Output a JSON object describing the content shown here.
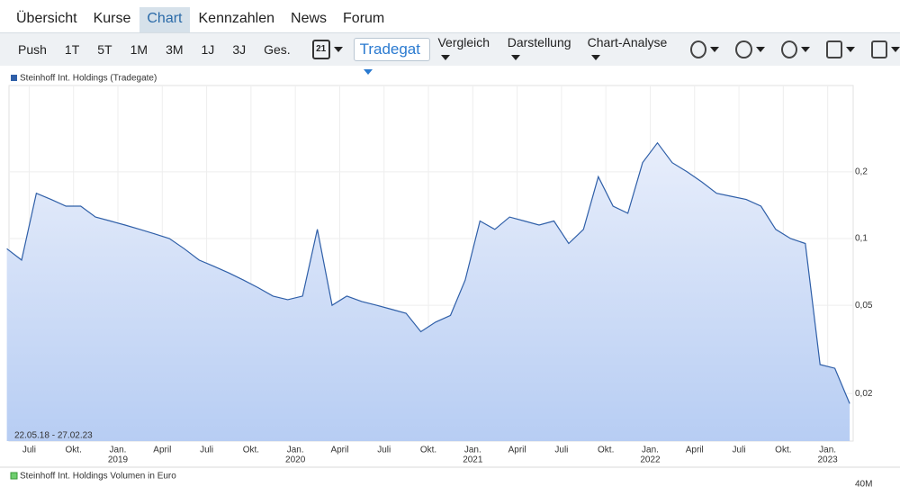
{
  "nav": {
    "tabs": [
      "Übersicht",
      "Kurse",
      "Chart",
      "Kennzahlen",
      "News",
      "Forum"
    ],
    "active": 2
  },
  "toolbar": {
    "periods": [
      "Push",
      "1T",
      "5T",
      "1M",
      "3M",
      "1J",
      "3J",
      "Ges."
    ],
    "calendar_day": "21",
    "exchange": "Tradegat",
    "menus": [
      "Vergleich",
      "Darstellung",
      "Chart-Analyse"
    ]
  },
  "chart_data": {
    "type": "line",
    "log": true,
    "grid": true,
    "date_range": "22.05.18 - 27.02.23",
    "x": [
      "2018-05",
      "2018-06",
      "2018-07",
      "2018-08",
      "2018-09",
      "2018-10",
      "2018-11",
      "2018-12",
      "2019-01",
      "2019-02",
      "2019-03",
      "2019-04",
      "2019-05",
      "2019-06",
      "2019-07",
      "2019-08",
      "2019-09",
      "2019-10",
      "2019-11",
      "2019-12",
      "2020-01",
      "2020-02",
      "2020-03",
      "2020-04",
      "2020-05",
      "2020-06",
      "2020-07",
      "2020-08",
      "2020-09",
      "2020-10",
      "2020-11",
      "2020-12",
      "2021-01",
      "2021-02",
      "2021-03",
      "2021-04",
      "2021-05",
      "2021-06",
      "2021-07",
      "2021-08",
      "2021-09",
      "2021-10",
      "2021-11",
      "2021-12",
      "2022-01",
      "2022-02",
      "2022-03",
      "2022-04",
      "2022-05",
      "2022-06",
      "2022-07",
      "2022-08",
      "2022-09",
      "2022-10",
      "2022-11",
      "2022-12",
      "2023-01",
      "2023-02"
    ],
    "series": [
      {
        "name": "Steinhoff Int. Holdings (Tradegate)",
        "color": "#2f5fa8",
        "values": [
          0.09,
          0.08,
          0.16,
          0.15,
          0.14,
          0.14,
          0.125,
          0.12,
          0.115,
          0.11,
          0.105,
          0.1,
          0.09,
          0.08,
          0.075,
          0.07,
          0.065,
          0.06,
          0.055,
          0.053,
          0.055,
          0.11,
          0.05,
          0.055,
          0.052,
          0.05,
          0.048,
          0.046,
          0.038,
          0.042,
          0.045,
          0.065,
          0.12,
          0.11,
          0.125,
          0.12,
          0.115,
          0.12,
          0.095,
          0.11,
          0.19,
          0.14,
          0.13,
          0.22,
          0.27,
          0.22,
          0.2,
          0.18,
          0.16,
          0.155,
          0.15,
          0.14,
          0.11,
          0.1,
          0.095,
          0.027,
          0.026,
          0.018
        ]
      }
    ],
    "ylim": [
      0.0122,
      0.49
    ],
    "yticks": [
      {
        "value": 0.02,
        "label": "0,02"
      },
      {
        "value": 0.05,
        "label": "0,05"
      },
      {
        "value": 0.1,
        "label": "0,1"
      },
      {
        "value": 0.2,
        "label": "0,2"
      }
    ],
    "xticks": [
      {
        "value": "2018-07",
        "label": "Juli"
      },
      {
        "value": "2018-10",
        "label": "Okt."
      },
      {
        "value": "2019-01",
        "label": "Jan.",
        "year": "2019"
      },
      {
        "value": "2019-04",
        "label": "April"
      },
      {
        "value": "2019-07",
        "label": "Juli"
      },
      {
        "value": "2019-10",
        "label": "Okt."
      },
      {
        "value": "2020-01",
        "label": "Jan.",
        "year": "2020"
      },
      {
        "value": "2020-04",
        "label": "April"
      },
      {
        "value": "2020-07",
        "label": "Juli"
      },
      {
        "value": "2020-10",
        "label": "Okt."
      },
      {
        "value": "2021-01",
        "label": "Jan.",
        "year": "2021"
      },
      {
        "value": "2021-04",
        "label": "April"
      },
      {
        "value": "2021-07",
        "label": "Juli"
      },
      {
        "value": "2021-10",
        "label": "Okt."
      },
      {
        "value": "2022-01",
        "label": "Jan.",
        "year": "2022"
      },
      {
        "value": "2022-04",
        "label": "April"
      },
      {
        "value": "2022-07",
        "label": "Juli"
      },
      {
        "value": "2022-10",
        "label": "Okt."
      },
      {
        "value": "2023-01",
        "label": "Jan.",
        "year": "2023"
      }
    ]
  },
  "volume_chart": {
    "title": "Steinhoff Int. Holdings Volumen in Euro",
    "yticks": [
      {
        "value": 40000000,
        "label": "40M"
      }
    ]
  }
}
